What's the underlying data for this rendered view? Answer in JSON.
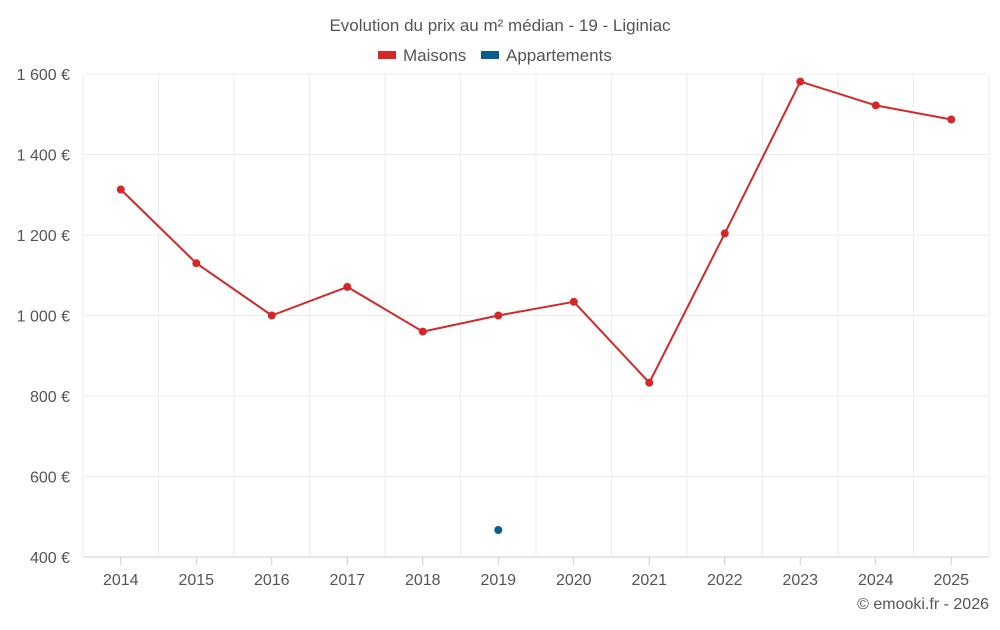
{
  "chart_data": {
    "type": "line",
    "title": "Evolution du prix au m² médian - 19 - Liginiac",
    "xlabel": "",
    "ylabel": "",
    "categories": [
      "2014",
      "2015",
      "2016",
      "2017",
      "2018",
      "2019",
      "2020",
      "2021",
      "2022",
      "2023",
      "2024",
      "2025"
    ],
    "ylim": [
      400,
      1600
    ],
    "yticks": [
      400,
      600,
      800,
      1000,
      1200,
      1400,
      1600
    ],
    "ytick_labels": [
      "400 €",
      "600 €",
      "800 €",
      "1 000 €",
      "1 200 €",
      "1 400 €",
      "1 600 €"
    ],
    "grid": true,
    "legend_position": "top-center",
    "series": [
      {
        "name": "Maisons",
        "color": "#d62728",
        "values": [
          1313,
          1130,
          1000,
          1071,
          960,
          1000,
          1034,
          833,
          1204,
          1581,
          1522,
          1487
        ]
      },
      {
        "name": "Appartements",
        "color": "#0d5c91",
        "values": [
          null,
          null,
          null,
          null,
          null,
          467,
          null,
          null,
          null,
          null,
          null,
          null
        ]
      }
    ]
  },
  "credit": "© emooki.fr - 2026"
}
